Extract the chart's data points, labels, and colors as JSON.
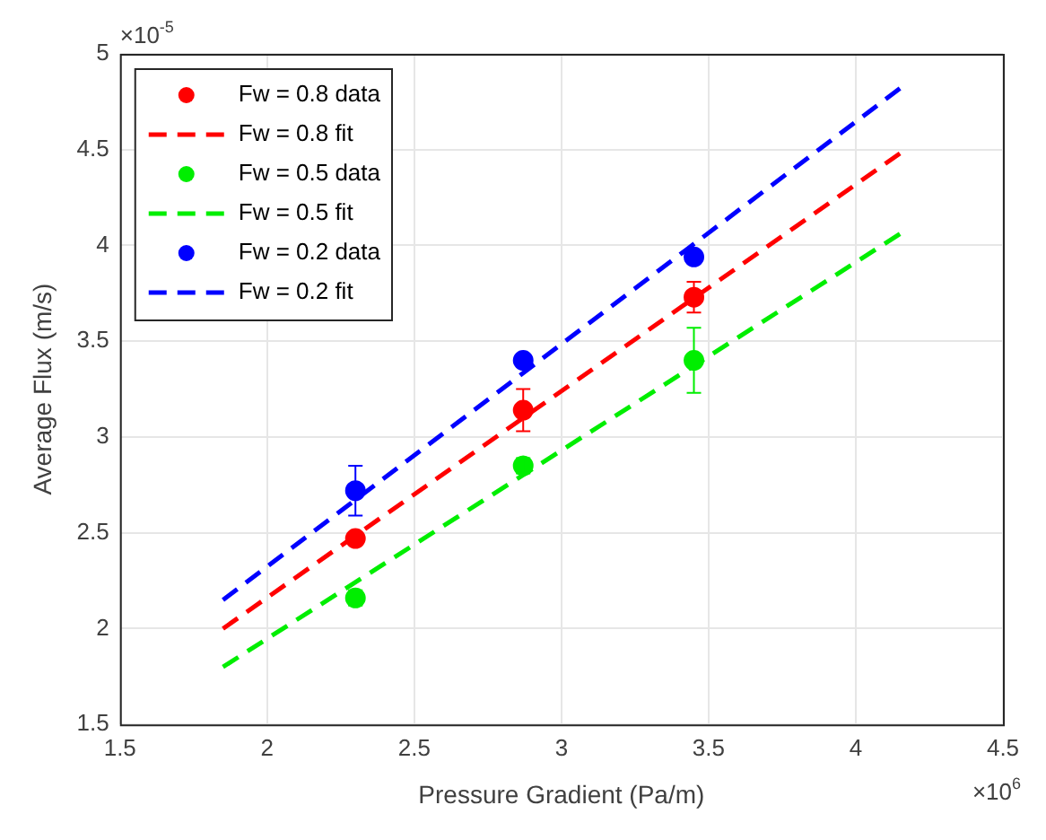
{
  "chart_data": {
    "type": "scatter",
    "xlabel": "Pressure Gradient (Pa/m)",
    "ylabel": "Average Flux (m/s)",
    "annotations": [
      "×10$^{-5}$",
      "×10$^{6}$"
    ],
    "xlim": [
      1.5,
      4.5
    ],
    "xticks": [
      1.5,
      2,
      2.5,
      3,
      3.5,
      4,
      4.5
    ],
    "ylim": [
      1.5,
      5
    ],
    "yticks": [
      1.5,
      2,
      2.5,
      3,
      3.5,
      4,
      4.5,
      5
    ],
    "grid": true,
    "legend": "top left",
    "series": [
      {
        "name": "Fw = 0.8 data",
        "marker": "circle",
        "color": "#ff0000",
        "x": [
          2.3,
          2.87,
          3.45
        ],
        "values": [
          2.47,
          3.14,
          3.73
        ],
        "errors": [
          null,
          0.11,
          0.08
        ]
      },
      {
        "name": "Fw = 0.8 fit",
        "type": "line",
        "marker": "none",
        "line_style": "dashed",
        "color": "#ff0000",
        "x": [
          1.85,
          4.15
        ],
        "values": [
          2.0,
          4.48
        ]
      },
      {
        "name": "Fw = 0.5 data",
        "marker": "circle",
        "color": "#00ee00",
        "x": [
          2.3,
          2.87,
          3.45
        ],
        "values": [
          2.16,
          2.85,
          3.4
        ],
        "errors": [
          0.04,
          0.04,
          0.17
        ]
      },
      {
        "name": "Fw = 0.5 fit",
        "type": "line",
        "marker": "none",
        "line_style": "dashed",
        "color": "#00ee00",
        "x": [
          1.85,
          4.15
        ],
        "values": [
          1.8,
          4.06
        ]
      },
      {
        "name": "Fw = 0.2 data",
        "marker": "circle",
        "color": "#0000ff",
        "x": [
          2.3,
          2.87,
          3.45
        ],
        "values": [
          2.72,
          3.4,
          3.94
        ],
        "errors": [
          0.13,
          null,
          null
        ]
      },
      {
        "name": "Fw = 0.2 fit",
        "type": "line",
        "marker": "none",
        "line_style": "dashed",
        "color": "#0000ff",
        "x": [
          1.85,
          4.15
        ],
        "values": [
          2.15,
          4.82
        ]
      }
    ]
  }
}
